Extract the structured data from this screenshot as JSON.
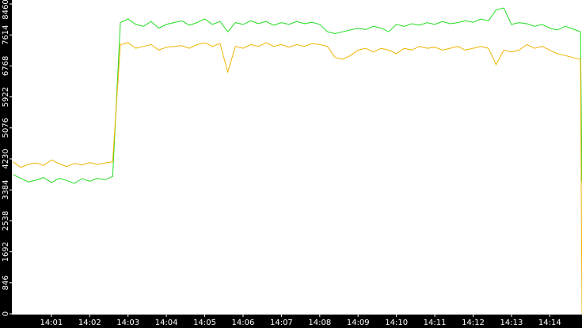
{
  "chart_data": {
    "type": "line",
    "x": [
      0,
      0.2,
      0.4,
      0.6,
      0.8,
      1.0,
      1.2,
      1.4,
      1.6,
      1.8,
      2.0,
      2.2,
      2.4,
      2.6,
      2.8,
      3.0,
      3.2,
      3.4,
      3.6,
      3.8,
      4.0,
      4.2,
      4.4,
      4.6,
      4.8,
      5.0,
      5.2,
      5.4,
      5.6,
      5.8,
      6.0,
      6.2,
      6.4,
      6.6,
      6.8,
      7.0,
      7.2,
      7.4,
      7.6,
      7.8,
      8.0,
      8.2,
      8.4,
      8.6,
      8.8,
      9.0,
      9.2,
      9.4,
      9.6,
      9.8,
      10.0,
      10.2,
      10.4,
      10.6,
      10.8,
      11.0,
      11.2,
      11.4,
      11.6,
      11.8,
      12.0,
      12.2,
      12.4,
      12.6,
      12.8,
      13.0,
      13.2,
      13.4,
      13.6,
      13.8,
      14.0,
      14.2,
      14.4,
      14.6,
      14.8,
      14.84
    ],
    "series": [
      {
        "color": "#22dd22",
        "values": [
          3800,
          3700,
          3600,
          3650,
          3720,
          3580,
          3700,
          3640,
          3560,
          3690,
          3620,
          3700,
          3660,
          3750,
          7950,
          8050,
          7900,
          7850,
          7980,
          7800,
          7900,
          7950,
          8000,
          7880,
          7950,
          8050,
          7900,
          7980,
          7700,
          7950,
          7900,
          8000,
          7920,
          7980,
          7880,
          7950,
          7900,
          7980,
          7920,
          7960,
          7900,
          7700,
          7650,
          7700,
          7750,
          7800,
          7760,
          7850,
          7800,
          7700,
          7900,
          7850,
          7920,
          7880,
          7950,
          7900,
          7980,
          7920,
          7950,
          8000,
          7960,
          8050,
          8000,
          8300,
          8350,
          7900,
          7950,
          7920,
          7850,
          7900,
          7800,
          7750,
          7850,
          7780,
          7700,
          3600
        ]
      },
      {
        "color": "#f0b400",
        "values": [
          4150,
          4000,
          4080,
          4120,
          4050,
          4200,
          4100,
          4020,
          4110,
          4060,
          4130,
          4080,
          4120,
          4150,
          7350,
          7400,
          7250,
          7300,
          7350,
          7200,
          7280,
          7300,
          7320,
          7250,
          7350,
          7400,
          7300,
          7380,
          6600,
          7300,
          7250,
          7350,
          7300,
          7400,
          7300,
          7350,
          7280,
          7350,
          7300,
          7380,
          7350,
          7300,
          7000,
          6950,
          7050,
          7200,
          7250,
          7150,
          7250,
          7200,
          7100,
          7250,
          7200,
          7300,
          7250,
          7280,
          7200,
          7250,
          7300,
          7200,
          7250,
          7300,
          7250,
          6800,
          7200,
          7150,
          7200,
          7350,
          7250,
          7300,
          7200,
          7100,
          7050,
          7000,
          6950,
          0
        ]
      }
    ],
    "xlim": [
      -0.03,
      14.84
    ],
    "xticks": [
      {
        "value": 1,
        "label": "14:01"
      },
      {
        "value": 2,
        "label": "14:02"
      },
      {
        "value": 3,
        "label": "14:03"
      },
      {
        "value": 4,
        "label": "14:04"
      },
      {
        "value": 5,
        "label": "14:05"
      },
      {
        "value": 6,
        "label": "14:06"
      },
      {
        "value": 7,
        "label": "14:07"
      },
      {
        "value": 8,
        "label": "14:08"
      },
      {
        "value": 9,
        "label": "14:09"
      },
      {
        "value": 10,
        "label": "14:10"
      },
      {
        "value": 11,
        "label": "14:11"
      },
      {
        "value": 12,
        "label": "14:12"
      },
      {
        "value": 13,
        "label": "14:13"
      },
      {
        "value": 14,
        "label": "14:14"
      }
    ],
    "ylim": [
      0,
      8460
    ],
    "yticks": [
      0,
      846,
      1692,
      2538,
      3384,
      4230,
      5076,
      5922,
      6768,
      7614,
      8460
    ]
  }
}
